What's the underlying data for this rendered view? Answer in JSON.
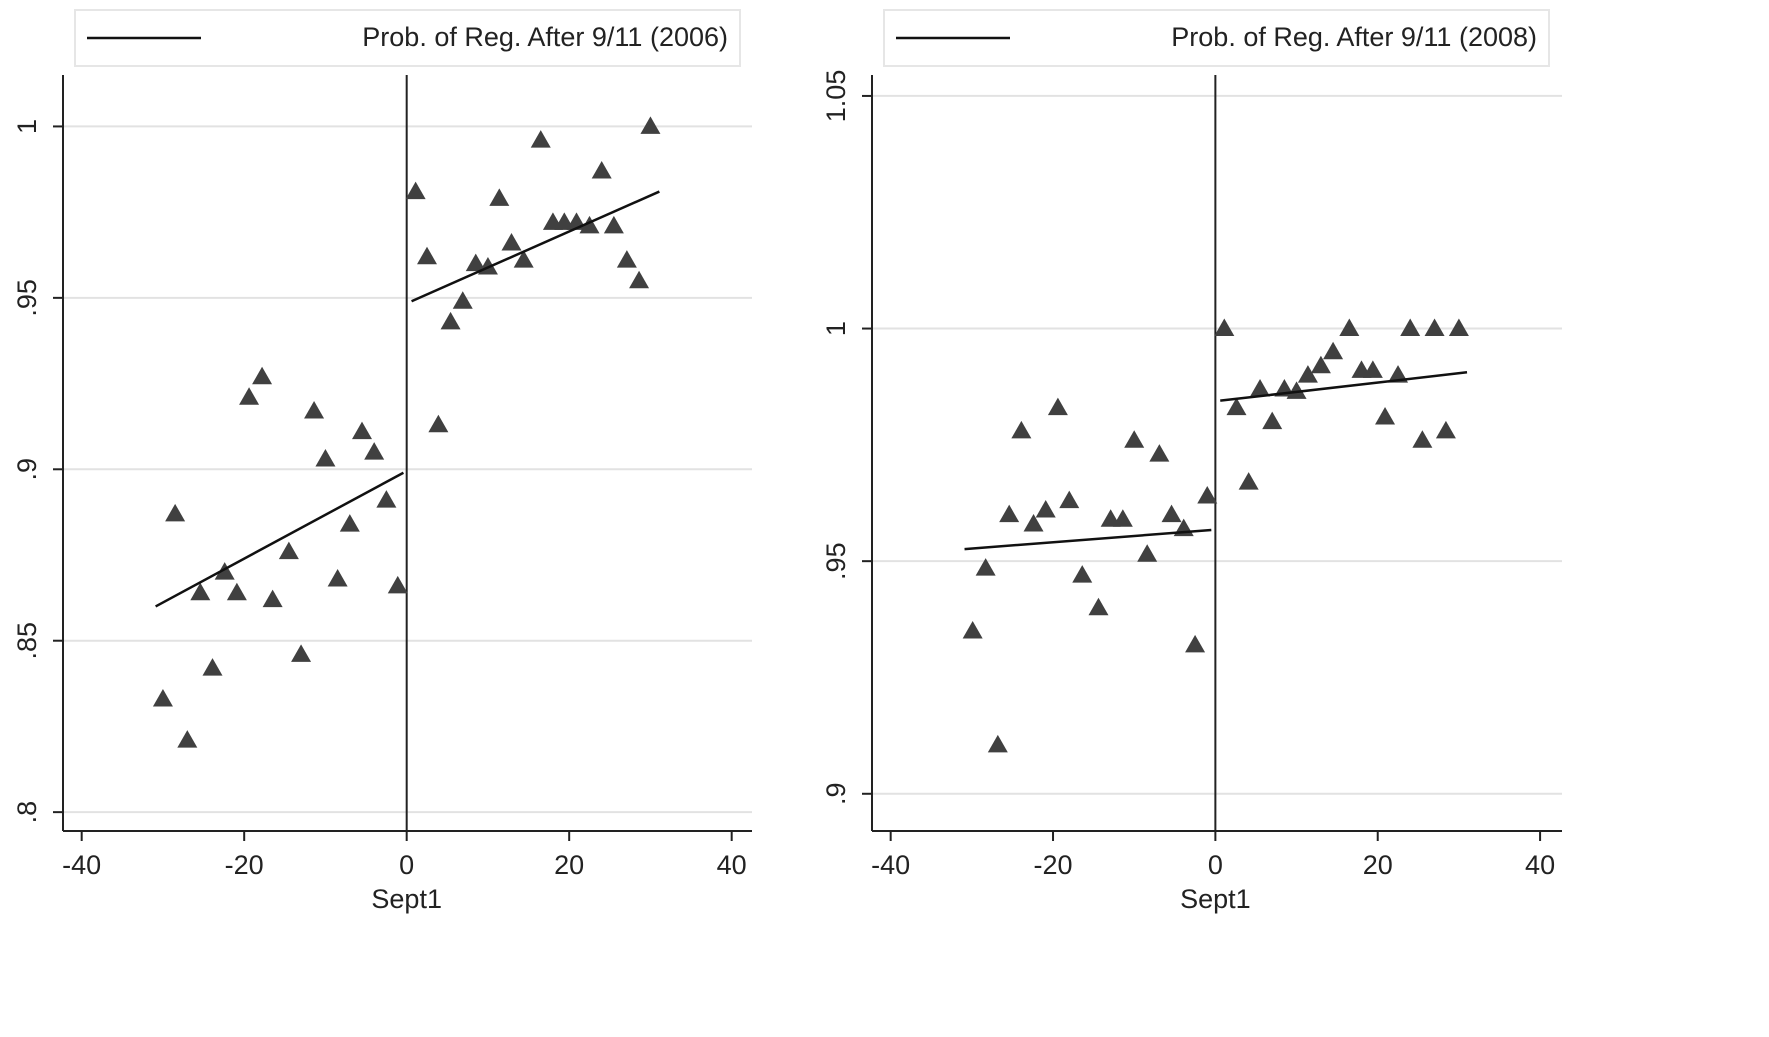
{
  "chart_data": [
    {
      "type": "scatter",
      "xlabel": "Sept1",
      "xlim": [
        -42.3,
        42.5
      ],
      "ylim": [
        0.7945,
        1.015
      ],
      "xticks": [
        -40,
        -20,
        0,
        20,
        40
      ],
      "yticks": [
        {
          "value": 0.8,
          "label": ".8"
        },
        {
          "value": 0.85,
          "label": ".85"
        },
        {
          "value": 0.9,
          "label": ".9"
        },
        {
          "value": 0.95,
          "label": ".95"
        },
        {
          "value": 1,
          "label": "1"
        }
      ],
      "grid": true,
      "vlines": [
        0
      ],
      "legend": "top",
      "series": [
        {
          "type": "scatter",
          "color": "#404040",
          "x": [
            -30,
            -28.5,
            -27,
            -25.4,
            -23.9,
            -22.4,
            -20.9,
            -19.4,
            -17.8,
            -16.5,
            -14.5,
            -13,
            -11.4,
            -10,
            -8.5,
            -7,
            -5.5,
            -4,
            -2.5,
            -1.1,
            1.1,
            2.5,
            3.9,
            5.4,
            6.9,
            8.5,
            10,
            11.4,
            12.9,
            14.4,
            16.5,
            18,
            19.4,
            20.9,
            22.5,
            24,
            25.5,
            27.1,
            28.6,
            30
          ],
          "values": [
            0.833,
            0.887,
            0.821,
            0.864,
            0.842,
            0.87,
            0.864,
            0.921,
            0.927,
            0.862,
            0.876,
            0.846,
            0.917,
            0.903,
            0.868,
            0.884,
            0.911,
            0.905,
            0.891,
            0.866,
            0.981,
            0.962,
            0.913,
            0.943,
            0.949,
            0.96,
            0.959,
            0.979,
            0.966,
            0.961,
            0.996,
            0.972,
            0.972,
            0.972,
            0.971,
            0.987,
            0.971,
            0.961,
            0.955,
            1.0
          ]
        },
        {
          "type": "line",
          "name": "Prob. of Reg. After 9/11 (2006)",
          "color": "#111111",
          "x": [
            -30.9,
            -0.4
          ],
          "values": [
            0.86,
            0.899
          ]
        },
        {
          "type": "line",
          "color": "#111111",
          "x": [
            0.6,
            31.1
          ],
          "values": [
            0.949,
            0.981
          ]
        }
      ]
    },
    {
      "type": "scatter",
      "xlabel": "Sept1",
      "xlim": [
        -42.3,
        42.7
      ],
      "ylim": [
        0.892,
        1.0545
      ],
      "xticks": [
        -40,
        -20,
        0,
        20,
        40
      ],
      "yticks": [
        {
          "value": 0.9,
          "label": ".9"
        },
        {
          "value": 0.95,
          "label": ".95"
        },
        1,
        1.05
      ],
      "grid": true,
      "vlines": [
        0
      ],
      "legend": "top",
      "series": [
        {
          "type": "scatter",
          "color": "#404040",
          "x": [
            -29.9,
            -28.3,
            -26.8,
            -25.4,
            -23.9,
            -22.4,
            -20.9,
            -19.4,
            -18,
            -16.4,
            -14.4,
            -12.9,
            -11.4,
            -10,
            -8.4,
            -6.9,
            -5.4,
            -3.9,
            -2.5,
            -1,
            1.1,
            2.6,
            4.1,
            5.5,
            7,
            8.5,
            10,
            11.4,
            13,
            14.5,
            16.5,
            18,
            19.4,
            20.9,
            22.5,
            24,
            25.5,
            27,
            28.4,
            30
          ],
          "values": [
            0.935,
            0.9485,
            0.9105,
            0.96,
            0.978,
            0.958,
            0.961,
            0.983,
            0.963,
            0.947,
            0.94,
            0.959,
            0.959,
            0.976,
            0.9515,
            0.973,
            0.96,
            0.957,
            0.932,
            0.964,
            1.0,
            0.983,
            0.967,
            0.987,
            0.98,
            0.987,
            0.9865,
            0.99,
            0.992,
            0.995,
            1.0,
            0.991,
            0.991,
            0.981,
            0.99,
            1.0,
            0.976,
            1.0,
            0.978,
            1.0
          ]
        },
        {
          "type": "line",
          "name": "Prob. of Reg. After 9/11 (2008)",
          "color": "#111111",
          "x": [
            -30.9,
            -0.5
          ],
          "values": [
            0.9526,
            0.9567
          ]
        },
        {
          "type": "line",
          "color": "#111111",
          "x": [
            0.6,
            31
          ],
          "values": [
            0.9845,
            0.9906
          ]
        }
      ]
    }
  ]
}
